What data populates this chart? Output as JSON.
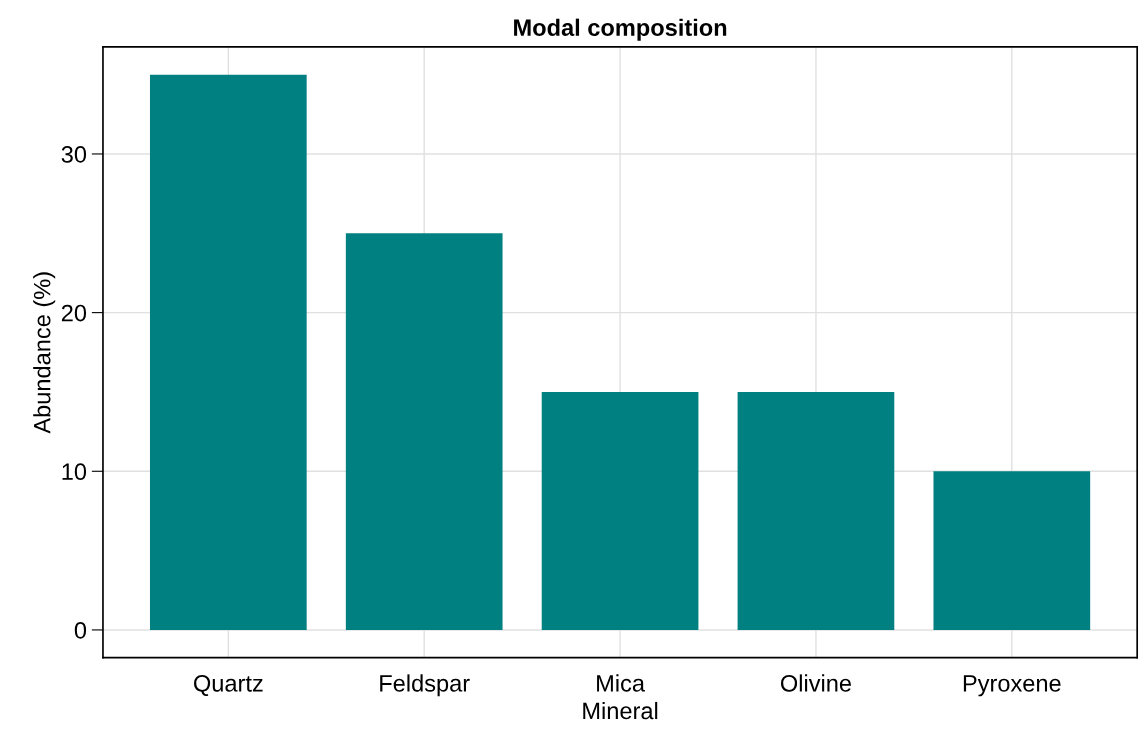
{
  "chart_data": {
    "type": "bar",
    "title": "Modal composition",
    "xlabel": "Mineral",
    "ylabel": "Abundance (%)",
    "categories": [
      "Quartz",
      "Feldspar",
      "Mica",
      "Olivine",
      "Pyroxene"
    ],
    "values": [
      35,
      25,
      15,
      15,
      10
    ],
    "color": "#008080",
    "ylim": [
      -1.75,
      36.75
    ],
    "yticks": [
      0,
      10,
      20,
      30
    ],
    "grid": true
  }
}
